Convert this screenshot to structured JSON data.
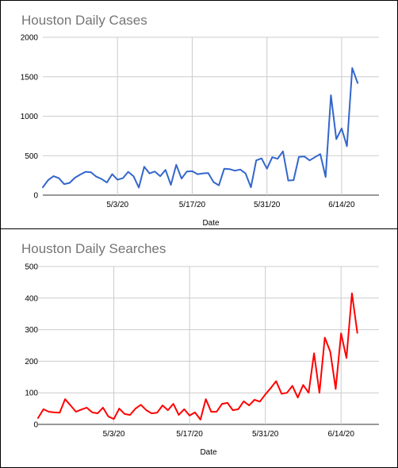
{
  "chart_data": [
    {
      "type": "line",
      "title": "Houston Daily Cases",
      "xlabel": "Date",
      "ylabel": "",
      "ylim": [
        0,
        2000
      ],
      "yticks": [
        "0",
        "500",
        "1000",
        "1500",
        "2000"
      ],
      "xticks": [
        "5/3/20",
        "5/17/20",
        "5/31/20",
        "6/14/20"
      ],
      "series": [
        {
          "color": "#3366cc",
          "x": [
            "4/19/20",
            "4/20/20",
            "4/21/20",
            "4/22/20",
            "4/23/20",
            "4/24/20",
            "4/25/20",
            "4/26/20",
            "4/27/20",
            "4/28/20",
            "4/29/20",
            "4/30/20",
            "5/1/20",
            "5/2/20",
            "5/3/20",
            "5/4/20",
            "5/5/20",
            "5/6/20",
            "5/7/20",
            "5/8/20",
            "5/9/20",
            "5/10/20",
            "5/11/20",
            "5/12/20",
            "5/13/20",
            "5/14/20",
            "5/15/20",
            "5/16/20",
            "5/17/20",
            "5/18/20",
            "5/19/20",
            "5/20/20",
            "5/21/20",
            "5/22/20",
            "5/23/20",
            "5/24/20",
            "5/25/20",
            "5/26/20",
            "5/27/20",
            "5/28/20",
            "5/29/20",
            "5/30/20",
            "5/31/20",
            "6/1/20",
            "6/2/20",
            "6/3/20",
            "6/4/20",
            "6/5/20",
            "6/6/20",
            "6/7/20",
            "6/8/20",
            "6/9/20",
            "6/10/20",
            "6/11/20",
            "6/12/20",
            "6/13/20",
            "6/14/20",
            "6/15/20",
            "6/16/20",
            "6/17/20",
            "6/18/20",
            "6/19/20",
            "6/20/20",
            "6/21/20"
          ],
          "values": [
            100,
            190,
            240,
            215,
            140,
            155,
            220,
            260,
            295,
            290,
            235,
            205,
            160,
            265,
            195,
            215,
            295,
            240,
            95,
            360,
            275,
            300,
            240,
            320,
            130,
            385,
            210,
            300,
            305,
            265,
            275,
            280,
            165,
            125,
            335,
            330,
            310,
            325,
            275,
            100,
            440,
            465,
            335,
            480,
            460,
            555,
            185,
            190,
            485,
            490,
            440,
            480,
            520,
            230,
            1265,
            710,
            845,
            620,
            1610,
            1420,
            null,
            null,
            null,
            null
          ]
        }
      ]
    },
    {
      "type": "line",
      "title": "Houston Daily Searches",
      "xlabel": "Date",
      "ylabel": "",
      "ylim": [
        0,
        500
      ],
      "yticks": [
        "0",
        "100",
        "200",
        "300",
        "400",
        "500"
      ],
      "xticks": [
        "5/3/20",
        "5/17/20",
        "5/31/20",
        "6/14/20"
      ],
      "series": [
        {
          "color": "#ff0000",
          "x": [
            "4/19/20",
            "4/20/20",
            "4/21/20",
            "4/22/20",
            "4/23/20",
            "4/24/20",
            "4/25/20",
            "4/26/20",
            "4/27/20",
            "4/28/20",
            "4/29/20",
            "4/30/20",
            "5/1/20",
            "5/2/20",
            "5/3/20",
            "5/4/20",
            "5/5/20",
            "5/6/20",
            "5/7/20",
            "5/8/20",
            "5/9/20",
            "5/10/20",
            "5/11/20",
            "5/12/20",
            "5/13/20",
            "5/14/20",
            "5/15/20",
            "5/16/20",
            "5/17/20",
            "5/18/20",
            "5/19/20",
            "5/20/20",
            "5/21/20",
            "5/22/20",
            "5/23/20",
            "5/24/20",
            "5/25/20",
            "5/26/20",
            "5/27/20",
            "5/28/20",
            "5/29/20",
            "5/30/20",
            "5/31/20",
            "6/1/20",
            "6/2/20",
            "6/3/20",
            "6/4/20",
            "6/5/20",
            "6/6/20",
            "6/7/20",
            "6/8/20",
            "6/9/20",
            "6/10/20",
            "6/11/20",
            "6/12/20",
            "6/13/20",
            "6/14/20",
            "6/15/20",
            "6/16/20",
            "6/17/20",
            "6/18/20",
            "6/19/20",
            "6/20/20",
            "6/21/20"
          ],
          "values": [
            20,
            48,
            40,
            38,
            37,
            80,
            60,
            40,
            47,
            53,
            38,
            35,
            53,
            25,
            17,
            50,
            33,
            30,
            50,
            62,
            45,
            35,
            37,
            60,
            45,
            65,
            30,
            48,
            28,
            38,
            15,
            80,
            40,
            40,
            65,
            68,
            45,
            48,
            73,
            60,
            78,
            72,
            95,
            115,
            137,
            97,
            100,
            122,
            85,
            125,
            100,
            225,
            100,
            275,
            230,
            112,
            288,
            210,
            415,
            290,
            null,
            null,
            null,
            null
          ]
        }
      ]
    }
  ]
}
